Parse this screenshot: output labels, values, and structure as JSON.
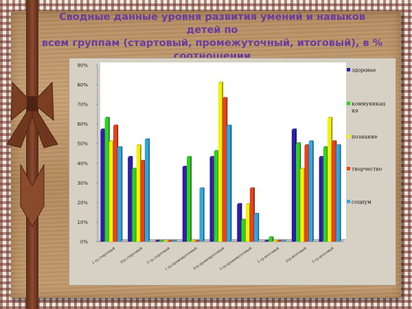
{
  "title_lines": [
    "Сводные данные уровня  развития умений и навыков  детей  по",
    "всем группам (стартовый, промежуточный, итоговый), в %",
    "соотношении"
  ],
  "colors": {
    "title": "#6a3ba0",
    "series": [
      "#2a1fa8",
      "#2fcf23",
      "#f5f20a",
      "#e8411c",
      "#31a7e0"
    ]
  },
  "chart_data": {
    "type": "bar",
    "title": "Сводные данные уровня  развития умений и навыков  детей  по всем группам (стартовый, промежуточный, итоговый), в % соотношении",
    "categories": [
      "1 гр.стартовый",
      "2гр.стартовый",
      "3 гр.стартовый",
      "1 гр.промежуточный",
      "2гр.промежуточный",
      "3 гр.промежуточный",
      "1 гр.итоговый",
      "2гр.итоговый",
      "3 гр.итоговый"
    ],
    "series": [
      {
        "name": "здоровье",
        "values": [
          57,
          43,
          0,
          38,
          43,
          19,
          0,
          57,
          43
        ]
      },
      {
        "name": "коммуникация",
        "legend_lines": [
          "коммуникац",
          "ия"
        ],
        "values": [
          63,
          37,
          0,
          43,
          46,
          11,
          2,
          50,
          48
        ]
      },
      {
        "name": "познание",
        "values": [
          51,
          49,
          0,
          0,
          81,
          19,
          0,
          37,
          63
        ]
      },
      {
        "name": "творчество",
        "values": [
          59,
          41,
          0,
          0,
          73,
          27,
          0,
          49,
          51
        ]
      },
      {
        "name": "социум",
        "values": [
          48,
          52,
          0,
          27,
          59,
          14,
          0,
          51,
          49
        ]
      }
    ],
    "yticks": [
      "0%",
      "10%",
      "20%",
      "30%",
      "40%",
      "50%",
      "60%",
      "70%",
      "80%",
      "90%"
    ],
    "ylim": [
      0,
      90
    ],
    "grid": false,
    "legend_position": "right"
  }
}
